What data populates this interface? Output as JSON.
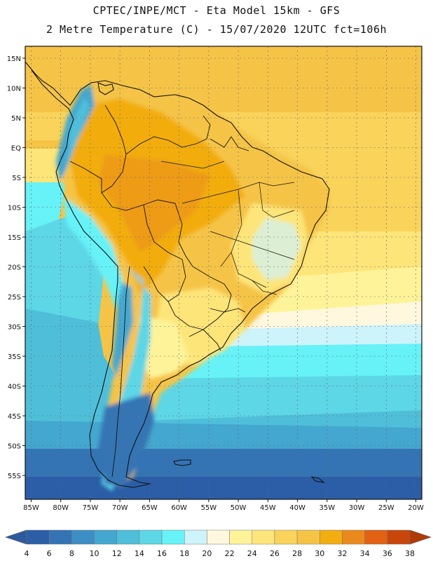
{
  "header": {
    "line1": "CPTEC/INPE/MCT -  Eta Model 15km - GFS",
    "line2": "2 Metre Temperature (C) - 15/07/2020 12UTC fct=106h"
  },
  "map": {
    "lon_range": [
      -86,
      -19
    ],
    "lat_range": [
      17,
      -59
    ],
    "lat_ticks": [
      {
        "value": 15,
        "label": "15N"
      },
      {
        "value": 10,
        "label": "10N"
      },
      {
        "value": 5,
        "label": "5N"
      },
      {
        "value": 0,
        "label": "EQ"
      },
      {
        "value": -5,
        "label": "5S"
      },
      {
        "value": -10,
        "label": "10S"
      },
      {
        "value": -15,
        "label": "15S"
      },
      {
        "value": -20,
        "label": "20S"
      },
      {
        "value": -25,
        "label": "25S"
      },
      {
        "value": -30,
        "label": "30S"
      },
      {
        "value": -35,
        "label": "35S"
      },
      {
        "value": -40,
        "label": "40S"
      },
      {
        "value": -45,
        "label": "45S"
      },
      {
        "value": -50,
        "label": "50S"
      },
      {
        "value": -55,
        "label": "55S"
      }
    ],
    "lon_ticks": [
      {
        "value": -85,
        "label": "85W"
      },
      {
        "value": -80,
        "label": "80W"
      },
      {
        "value": -75,
        "label": "75W"
      },
      {
        "value": -70,
        "label": "70W"
      },
      {
        "value": -65,
        "label": "65W"
      },
      {
        "value": -60,
        "label": "60W"
      },
      {
        "value": -55,
        "label": "55W"
      },
      {
        "value": -50,
        "label": "50W"
      },
      {
        "value": -45,
        "label": "45W"
      },
      {
        "value": -40,
        "label": "40W"
      },
      {
        "value": -35,
        "label": "35W"
      },
      {
        "value": -30,
        "label": "30W"
      },
      {
        "value": -25,
        "label": "25W"
      },
      {
        "value": -20,
        "label": "20W"
      }
    ]
  },
  "colorbar": {
    "labels": [
      "4",
      "6",
      "8",
      "10",
      "12",
      "14",
      "16",
      "18",
      "20",
      "22",
      "24",
      "26",
      "28",
      "30",
      "32",
      "34",
      "36",
      "38"
    ],
    "colors": [
      "#2b5ea7",
      "#3474b4",
      "#3d8ec4",
      "#44a7cf",
      "#4fbfd9",
      "#5dd6e6",
      "#66f2f7",
      "#cdf3fb",
      "#fff8df",
      "#fff39a",
      "#fde579",
      "#f9d35a",
      "#f5c447",
      "#f2ad10",
      "#ea8a1c",
      "#e26112",
      "#c8460a"
    ],
    "left_arrow_color": "#2d5a9c",
    "right_arrow_color": "#b13a06"
  },
  "chart_data": {
    "type": "heatmap",
    "title": "CPTEC/INPE/MCT -  Eta Model 15km - GFS / 2 Metre Temperature (C) - 15/07/2020 12UTC fct=106h",
    "colorbar_values": [
      4,
      6,
      8,
      10,
      12,
      14,
      16,
      18,
      20,
      22,
      24,
      26,
      28,
      30,
      32,
      34,
      36,
      38
    ],
    "lon_range": [
      -86,
      -19
    ],
    "lat_range": [
      -59,
      17
    ],
    "grid": true
  }
}
